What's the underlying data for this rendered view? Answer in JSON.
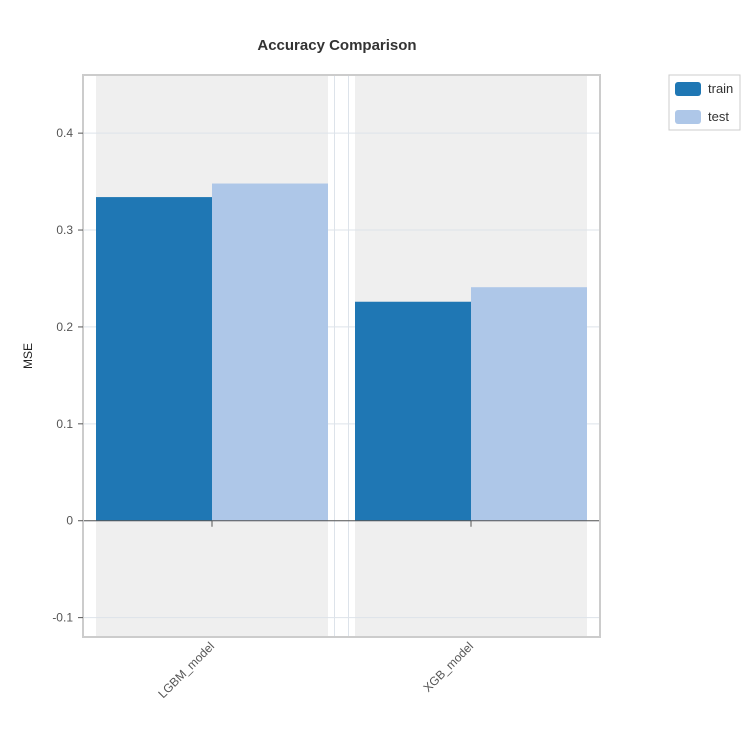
{
  "chart_data": {
    "type": "bar",
    "title": "Accuracy Comparison",
    "xlabel": "",
    "ylabel": "MSE",
    "categories": [
      "LGBM_model",
      "XGB_model"
    ],
    "series": [
      {
        "name": "train",
        "color": "#1f77b4",
        "values": [
          0.334,
          0.226
        ]
      },
      {
        "name": "test",
        "color": "#aec7e8",
        "values": [
          0.348,
          0.241
        ]
      }
    ],
    "ylim": [
      -0.12,
      0.46
    ],
    "yticks": [
      -0.1,
      0,
      0.1,
      0.2,
      0.3,
      0.4
    ],
    "ytick_labels": [
      "-0.1",
      "0",
      "0.1",
      "0.2",
      "0.3",
      "0.4"
    ],
    "grid": true,
    "legend_position": "top-right"
  }
}
